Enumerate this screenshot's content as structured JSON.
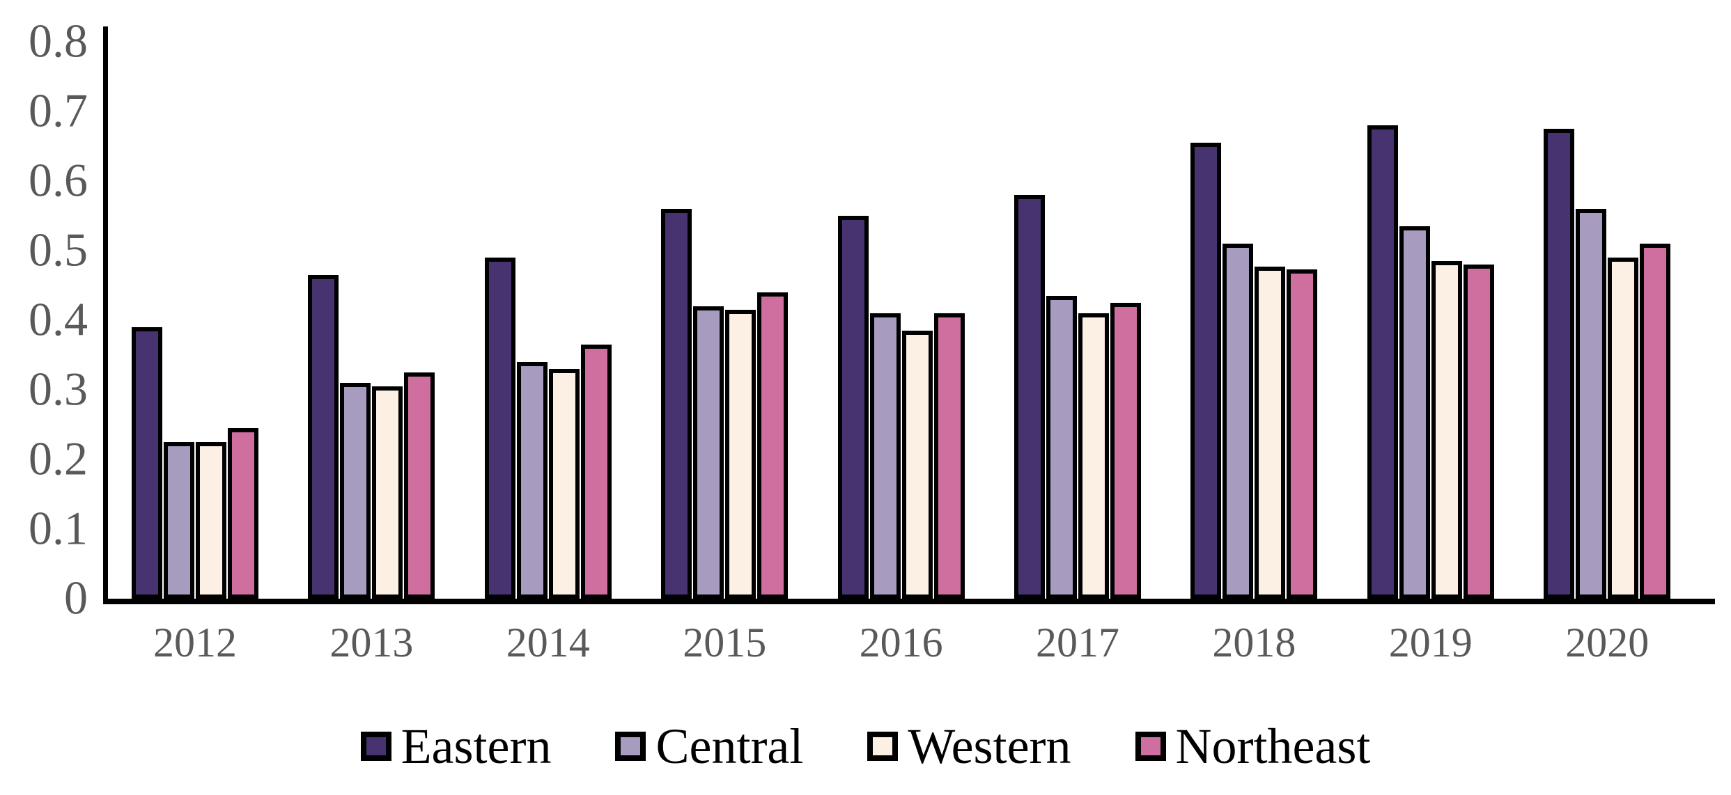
{
  "chart_data": {
    "type": "bar",
    "title": "",
    "xlabel": "",
    "ylabel": "",
    "categories": [
      "2012",
      "2013",
      "2014",
      "2015",
      "2016",
      "2017",
      "2018",
      "2019",
      "2020"
    ],
    "series": [
      {
        "name": "Eastern",
        "color": "#463370",
        "values": [
          0.39,
          0.465,
          0.49,
          0.56,
          0.55,
          0.58,
          0.655,
          0.68,
          0.675
        ]
      },
      {
        "name": "Central",
        "color": "#A79BC0",
        "values": [
          0.225,
          0.31,
          0.34,
          0.42,
          0.41,
          0.435,
          0.51,
          0.535,
          0.56
        ]
      },
      {
        "name": "Western",
        "color": "#FCEFE3",
        "values": [
          0.225,
          0.305,
          0.33,
          0.415,
          0.385,
          0.41,
          0.477,
          0.485,
          0.49
        ]
      },
      {
        "name": "Northeast",
        "color": "#CE6F9F",
        "values": [
          0.245,
          0.325,
          0.365,
          0.44,
          0.41,
          0.425,
          0.473,
          0.48,
          0.51
        ]
      }
    ],
    "y_ticks": [
      "0.8",
      "0.7",
      "0.6",
      "0.5",
      "0.4",
      "0.3",
      "0.2",
      "0.1",
      "0"
    ],
    "ylim": [
      0,
      0.8
    ],
    "grid": false,
    "legend_position": "bottom",
    "bar_border_color": "#000000",
    "axis_color": "#000000",
    "tick_label_color": "#595959",
    "legend_text_color": "#000000"
  }
}
